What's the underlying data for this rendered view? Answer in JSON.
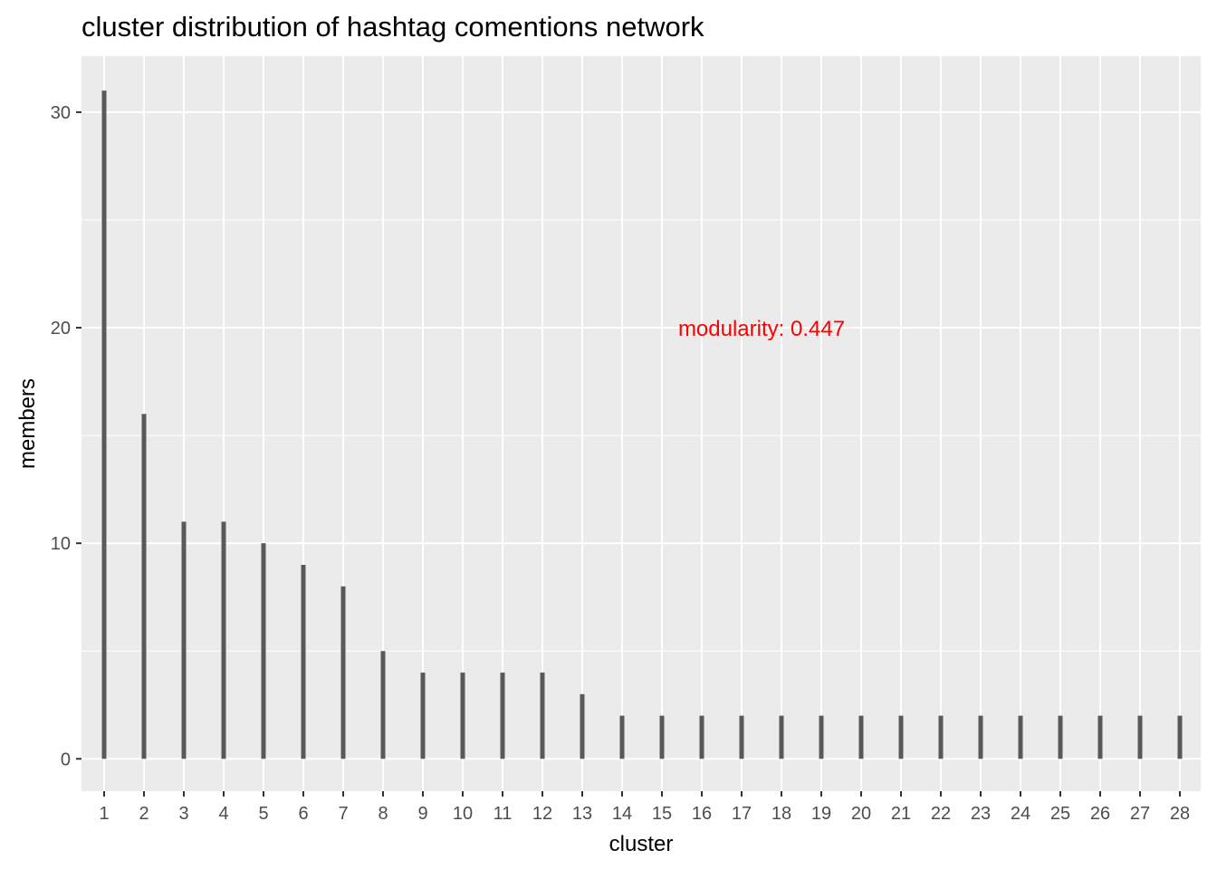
{
  "chart_data": {
    "type": "bar",
    "title": "cluster distribution of hashtag comentions network",
    "xlabel": "cluster",
    "ylabel": "members",
    "categories": [
      "1",
      "2",
      "3",
      "4",
      "5",
      "6",
      "7",
      "8",
      "9",
      "10",
      "11",
      "12",
      "13",
      "14",
      "15",
      "16",
      "17",
      "18",
      "19",
      "20",
      "21",
      "22",
      "23",
      "24",
      "25",
      "26",
      "27",
      "28"
    ],
    "values": [
      31,
      16,
      11,
      11,
      10,
      9,
      8,
      5,
      4,
      4,
      4,
      4,
      3,
      2,
      2,
      2,
      2,
      2,
      2,
      2,
      2,
      2,
      2,
      2,
      2,
      2,
      2,
      2
    ],
    "ylim": [
      -1.5,
      32.6
    ],
    "yticks": [
      0,
      10,
      20,
      30
    ],
    "grid": true,
    "bar_color": "#595959",
    "panel_color": "#ebebeb",
    "annotation": {
      "text": "modularity: 0.447",
      "x": 17.5,
      "y": 20,
      "color": "#ff0000"
    }
  }
}
